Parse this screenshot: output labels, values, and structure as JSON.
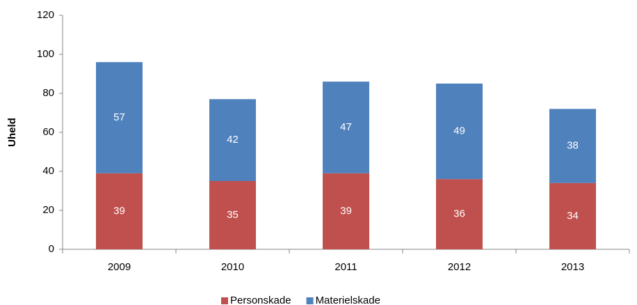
{
  "chart_data": {
    "type": "stacked_bar",
    "y_label": "Uheld",
    "categories": [
      "2009",
      "2010",
      "2011",
      "2012",
      "2013"
    ],
    "series": [
      {
        "name": "Personskade",
        "color": "#c0504d",
        "values": [
          39,
          35,
          39,
          36,
          34
        ]
      },
      {
        "name": "Materielskade",
        "color": "#4f81bd",
        "values": [
          57,
          42,
          47,
          49,
          38
        ]
      }
    ],
    "ylim": [
      0,
      120
    ],
    "yticks": [
      0,
      20,
      40,
      60,
      80,
      100,
      120
    ],
    "grid": false,
    "legend": "bottom"
  }
}
